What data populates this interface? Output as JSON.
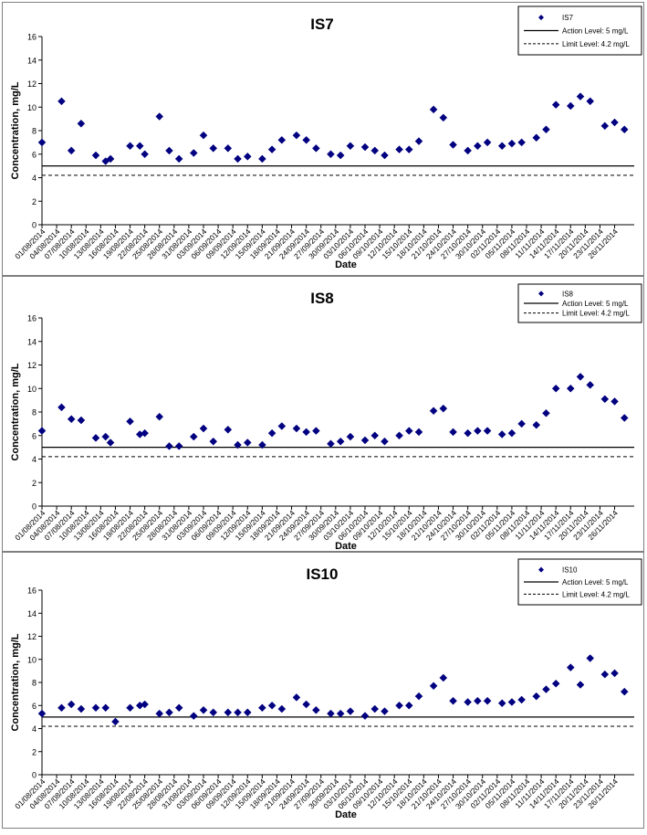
{
  "chart_data": [
    {
      "type": "scatter",
      "title": "IS7",
      "xlabel": "Date",
      "ylabel": "Concentration, mg/L",
      "ylim": [
        0,
        16
      ],
      "yticks": [
        "0",
        "2",
        "4",
        "6",
        "8",
        "10",
        "12",
        "14",
        "16"
      ],
      "xlim": [
        "01/08/2014",
        "30/11/2014"
      ],
      "xticks": [
        "01/08/2014",
        "04/08/2014",
        "07/08/2014",
        "10/08/2014",
        "13/08/2014",
        "16/08/2014",
        "19/08/2014",
        "22/08/2014",
        "25/08/2014",
        "28/08/2014",
        "31/08/2014",
        "03/09/2014",
        "06/09/2014",
        "09/09/2014",
        "12/09/2014",
        "15/09/2014",
        "18/09/2014",
        "21/09/2014",
        "24/09/2014",
        "27/09/2014",
        "30/09/2014",
        "03/10/2014",
        "06/10/2014",
        "09/10/2014",
        "12/10/2014",
        "15/10/2014",
        "18/10/2014",
        "21/10/2014",
        "24/10/2014",
        "27/10/2014",
        "30/10/2014",
        "02/11/2014",
        "05/11/2014",
        "08/11/2014",
        "11/11/2014",
        "14/11/2014",
        "17/11/2014",
        "20/11/2014",
        "23/11/2014",
        "26/11/2014"
      ],
      "legend": {
        "placement": "top-right",
        "series_label": "IS7",
        "action_label": "Action Level: 5 mg/L",
        "limit_label": "Limit Level: 4.2 mg/L"
      },
      "action_level": 5,
      "limit_level": 4.2,
      "grid": false,
      "marker_color": "#000080",
      "points": [
        {
          "x": "01/08/2014",
          "y": 7.0
        },
        {
          "x": "05/08/2014",
          "y": 10.5
        },
        {
          "x": "07/08/2014",
          "y": 6.3
        },
        {
          "x": "09/08/2014",
          "y": 8.6
        },
        {
          "x": "12/08/2014",
          "y": 5.9
        },
        {
          "x": "14/08/2014",
          "y": 5.4
        },
        {
          "x": "15/08/2014",
          "y": 5.6
        },
        {
          "x": "19/08/2014",
          "y": 6.7
        },
        {
          "x": "21/08/2014",
          "y": 6.7
        },
        {
          "x": "22/08/2014",
          "y": 6.0
        },
        {
          "x": "25/08/2014",
          "y": 9.2
        },
        {
          "x": "27/08/2014",
          "y": 6.3
        },
        {
          "x": "29/08/2014",
          "y": 5.6
        },
        {
          "x": "01/09/2014",
          "y": 6.1
        },
        {
          "x": "03/09/2014",
          "y": 7.6
        },
        {
          "x": "05/09/2014",
          "y": 6.5
        },
        {
          "x": "08/09/2014",
          "y": 6.5
        },
        {
          "x": "10/09/2014",
          "y": 5.6
        },
        {
          "x": "12/09/2014",
          "y": 5.8
        },
        {
          "x": "15/09/2014",
          "y": 5.6
        },
        {
          "x": "17/09/2014",
          "y": 6.4
        },
        {
          "x": "19/09/2014",
          "y": 7.2
        },
        {
          "x": "22/09/2014",
          "y": 7.6
        },
        {
          "x": "24/09/2014",
          "y": 7.2
        },
        {
          "x": "26/09/2014",
          "y": 6.5
        },
        {
          "x": "29/09/2014",
          "y": 6.0
        },
        {
          "x": "01/10/2014",
          "y": 5.9
        },
        {
          "x": "03/10/2014",
          "y": 6.7
        },
        {
          "x": "06/10/2014",
          "y": 6.6
        },
        {
          "x": "08/10/2014",
          "y": 6.3
        },
        {
          "x": "10/10/2014",
          "y": 5.9
        },
        {
          "x": "13/10/2014",
          "y": 6.4
        },
        {
          "x": "15/10/2014",
          "y": 6.4
        },
        {
          "x": "17/10/2014",
          "y": 7.1
        },
        {
          "x": "20/10/2014",
          "y": 9.8
        },
        {
          "x": "22/10/2014",
          "y": 9.1
        },
        {
          "x": "24/10/2014",
          "y": 6.8
        },
        {
          "x": "27/10/2014",
          "y": 6.3
        },
        {
          "x": "29/10/2014",
          "y": 6.7
        },
        {
          "x": "31/10/2014",
          "y": 7.0
        },
        {
          "x": "03/11/2014",
          "y": 6.7
        },
        {
          "x": "05/11/2014",
          "y": 6.9
        },
        {
          "x": "07/11/2014",
          "y": 7.0
        },
        {
          "x": "10/11/2014",
          "y": 7.4
        },
        {
          "x": "12/11/2014",
          "y": 8.1
        },
        {
          "x": "14/11/2014",
          "y": 10.2
        },
        {
          "x": "17/11/2014",
          "y": 10.1
        },
        {
          "x": "19/11/2014",
          "y": 10.9
        },
        {
          "x": "21/11/2014",
          "y": 10.5
        },
        {
          "x": "24/11/2014",
          "y": 8.4
        },
        {
          "x": "26/11/2014",
          "y": 8.7
        },
        {
          "x": "28/11/2014",
          "y": 8.1
        }
      ]
    },
    {
      "type": "scatter",
      "title": "IS8",
      "xlabel": "Date",
      "ylabel": "Concentration, mg/L",
      "ylim": [
        0,
        16
      ],
      "yticks": [
        "0",
        "2",
        "4",
        "6",
        "8",
        "10",
        "12",
        "14",
        "16"
      ],
      "xlim": [
        "01/08/2014",
        "30/11/2014"
      ],
      "xticks": [
        "01/08/2014",
        "04/08/2014",
        "07/08/2014",
        "10/08/2014",
        "13/08/2014",
        "16/08/2014",
        "19/08/2014",
        "22/08/2014",
        "25/08/2014",
        "28/08/2014",
        "31/08/2014",
        "03/09/2014",
        "06/09/2014",
        "09/09/2014",
        "12/09/2014",
        "15/09/2014",
        "18/09/2014",
        "21/09/2014",
        "24/09/2014",
        "27/09/2014",
        "30/09/2014",
        "03/10/2014",
        "06/10/2014",
        "09/10/2014",
        "12/10/2014",
        "15/10/2014",
        "18/10/2014",
        "21/10/2014",
        "24/10/2014",
        "27/10/2014",
        "30/10/2014",
        "02/11/2014",
        "05/11/2014",
        "08/11/2014",
        "11/11/2014",
        "14/11/2014",
        "17/11/2014",
        "20/11/2014",
        "23/11/2014",
        "26/11/2014"
      ],
      "legend": {
        "placement": "top-right",
        "series_label": "IS8",
        "action_label": "Action Level: 5 mg/L",
        "limit_label": "Limit Level: 4.2 mg/L"
      },
      "action_level": 5,
      "limit_level": 4.2,
      "grid": false,
      "marker_color": "#000080",
      "points": [
        {
          "x": "01/08/2014",
          "y": 6.4
        },
        {
          "x": "05/08/2014",
          "y": 8.4
        },
        {
          "x": "07/08/2014",
          "y": 7.4
        },
        {
          "x": "09/08/2014",
          "y": 7.3
        },
        {
          "x": "12/08/2014",
          "y": 5.8
        },
        {
          "x": "14/08/2014",
          "y": 5.9
        },
        {
          "x": "15/08/2014",
          "y": 5.4
        },
        {
          "x": "19/08/2014",
          "y": 7.2
        },
        {
          "x": "21/08/2014",
          "y": 6.1
        },
        {
          "x": "22/08/2014",
          "y": 6.2
        },
        {
          "x": "25/08/2014",
          "y": 7.6
        },
        {
          "x": "27/08/2014",
          "y": 5.1
        },
        {
          "x": "29/08/2014",
          "y": 5.1
        },
        {
          "x": "01/09/2014",
          "y": 5.9
        },
        {
          "x": "03/09/2014",
          "y": 6.6
        },
        {
          "x": "05/09/2014",
          "y": 5.5
        },
        {
          "x": "08/09/2014",
          "y": 6.5
        },
        {
          "x": "10/09/2014",
          "y": 5.2
        },
        {
          "x": "12/09/2014",
          "y": 5.4
        },
        {
          "x": "15/09/2014",
          "y": 5.2
        },
        {
          "x": "17/09/2014",
          "y": 6.2
        },
        {
          "x": "19/09/2014",
          "y": 6.8
        },
        {
          "x": "22/09/2014",
          "y": 6.6
        },
        {
          "x": "24/09/2014",
          "y": 6.3
        },
        {
          "x": "26/09/2014",
          "y": 6.4
        },
        {
          "x": "29/09/2014",
          "y": 5.3
        },
        {
          "x": "01/10/2014",
          "y": 5.5
        },
        {
          "x": "03/10/2014",
          "y": 5.9
        },
        {
          "x": "06/10/2014",
          "y": 5.6
        },
        {
          "x": "08/10/2014",
          "y": 6.0
        },
        {
          "x": "10/10/2014",
          "y": 5.5
        },
        {
          "x": "13/10/2014",
          "y": 6.0
        },
        {
          "x": "15/10/2014",
          "y": 6.4
        },
        {
          "x": "17/10/2014",
          "y": 6.3
        },
        {
          "x": "20/10/2014",
          "y": 8.1
        },
        {
          "x": "22/10/2014",
          "y": 8.3
        },
        {
          "x": "24/10/2014",
          "y": 6.3
        },
        {
          "x": "27/10/2014",
          "y": 6.2
        },
        {
          "x": "29/10/2014",
          "y": 6.4
        },
        {
          "x": "31/10/2014",
          "y": 6.4
        },
        {
          "x": "03/11/2014",
          "y": 6.1
        },
        {
          "x": "05/11/2014",
          "y": 6.2
        },
        {
          "x": "07/11/2014",
          "y": 7.0
        },
        {
          "x": "10/11/2014",
          "y": 6.9
        },
        {
          "x": "12/11/2014",
          "y": 7.9
        },
        {
          "x": "14/11/2014",
          "y": 10.0
        },
        {
          "x": "17/11/2014",
          "y": 10.0
        },
        {
          "x": "19/11/2014",
          "y": 11.0
        },
        {
          "x": "21/11/2014",
          "y": 10.3
        },
        {
          "x": "24/11/2014",
          "y": 9.1
        },
        {
          "x": "26/11/2014",
          "y": 8.9
        },
        {
          "x": "28/11/2014",
          "y": 7.5
        }
      ]
    },
    {
      "type": "scatter",
      "title": "IS10",
      "xlabel": "Date",
      "ylabel": "Concentration, mg/L",
      "ylim": [
        0,
        16
      ],
      "yticks": [
        "0",
        "2",
        "4",
        "6",
        "8",
        "10",
        "12",
        "14",
        "16"
      ],
      "xlim": [
        "01/08/2014",
        "30/11/2014"
      ],
      "xticks": [
        "01/08/2014",
        "04/08/2014",
        "07/08/2014",
        "10/08/2014",
        "13/08/2014",
        "16/08/2014",
        "19/08/2014",
        "22/08/2014",
        "25/08/2014",
        "28/08/2014",
        "31/08/2014",
        "03/09/2014",
        "06/09/2014",
        "09/09/2014",
        "12/09/2014",
        "15/09/2014",
        "18/09/2014",
        "21/09/2014",
        "24/09/2014",
        "27/09/2014",
        "30/09/2014",
        "03/10/2014",
        "06/10/2014",
        "09/10/2014",
        "12/10/2014",
        "15/10/2014",
        "18/10/2014",
        "21/10/2014",
        "24/10/2014",
        "27/10/2014",
        "30/10/2014",
        "02/11/2014",
        "05/11/2014",
        "08/11/2014",
        "11/11/2014",
        "14/11/2014",
        "17/11/2014",
        "20/11/2014",
        "23/11/2014",
        "26/11/2014"
      ],
      "legend": {
        "placement": "top-right",
        "series_label": "IS10",
        "action_label": "Action Level: 5 mg/L",
        "limit_label": "Limit Level: 4.2 mg/L"
      },
      "action_level": 5,
      "limit_level": 4.2,
      "grid": false,
      "marker_color": "#000080",
      "points": [
        {
          "x": "01/08/2014",
          "y": 5.3
        },
        {
          "x": "05/08/2014",
          "y": 5.8
        },
        {
          "x": "07/08/2014",
          "y": 6.1
        },
        {
          "x": "09/08/2014",
          "y": 5.7
        },
        {
          "x": "12/08/2014",
          "y": 5.8
        },
        {
          "x": "14/08/2014",
          "y": 5.8
        },
        {
          "x": "16/08/2014",
          "y": 4.6
        },
        {
          "x": "19/08/2014",
          "y": 5.8
        },
        {
          "x": "21/08/2014",
          "y": 6.0
        },
        {
          "x": "22/08/2014",
          "y": 6.1
        },
        {
          "x": "25/08/2014",
          "y": 5.3
        },
        {
          "x": "27/08/2014",
          "y": 5.4
        },
        {
          "x": "29/08/2014",
          "y": 5.8
        },
        {
          "x": "01/09/2014",
          "y": 5.1
        },
        {
          "x": "03/09/2014",
          "y": 5.6
        },
        {
          "x": "05/09/2014",
          "y": 5.4
        },
        {
          "x": "08/09/2014",
          "y": 5.4
        },
        {
          "x": "10/09/2014",
          "y": 5.4
        },
        {
          "x": "12/09/2014",
          "y": 5.4
        },
        {
          "x": "15/09/2014",
          "y": 5.8
        },
        {
          "x": "17/09/2014",
          "y": 6.0
        },
        {
          "x": "19/09/2014",
          "y": 5.7
        },
        {
          "x": "22/09/2014",
          "y": 6.7
        },
        {
          "x": "24/09/2014",
          "y": 6.1
        },
        {
          "x": "26/09/2014",
          "y": 5.6
        },
        {
          "x": "29/09/2014",
          "y": 5.3
        },
        {
          "x": "01/10/2014",
          "y": 5.3
        },
        {
          "x": "03/10/2014",
          "y": 5.5
        },
        {
          "x": "06/10/2014",
          "y": 5.1
        },
        {
          "x": "08/10/2014",
          "y": 5.7
        },
        {
          "x": "10/10/2014",
          "y": 5.5
        },
        {
          "x": "13/10/2014",
          "y": 6.0
        },
        {
          "x": "15/10/2014",
          "y": 6.0
        },
        {
          "x": "17/10/2014",
          "y": 6.8
        },
        {
          "x": "20/10/2014",
          "y": 7.7
        },
        {
          "x": "22/10/2014",
          "y": 8.4
        },
        {
          "x": "24/10/2014",
          "y": 6.4
        },
        {
          "x": "27/10/2014",
          "y": 6.3
        },
        {
          "x": "29/10/2014",
          "y": 6.4
        },
        {
          "x": "31/10/2014",
          "y": 6.4
        },
        {
          "x": "03/11/2014",
          "y": 6.2
        },
        {
          "x": "05/11/2014",
          "y": 6.3
        },
        {
          "x": "07/11/2014",
          "y": 6.5
        },
        {
          "x": "10/11/2014",
          "y": 6.8
        },
        {
          "x": "12/11/2014",
          "y": 7.4
        },
        {
          "x": "14/11/2014",
          "y": 7.9
        },
        {
          "x": "17/11/2014",
          "y": 9.3
        },
        {
          "x": "19/11/2014",
          "y": 7.8
        },
        {
          "x": "21/11/2014",
          "y": 10.1
        },
        {
          "x": "24/11/2014",
          "y": 8.7
        },
        {
          "x": "26/11/2014",
          "y": 8.8
        },
        {
          "x": "28/11/2014",
          "y": 7.2
        }
      ]
    }
  ]
}
